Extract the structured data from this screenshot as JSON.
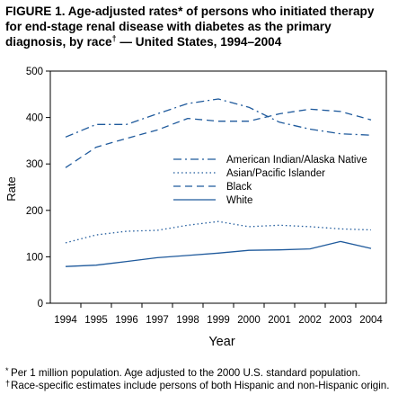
{
  "figure": {
    "title_main": "FIGURE 1. Age-adjusted rates* of persons who initiated therapy for end-stage renal disease with diabetes as the primary diagnosis, by race",
    "title_mark": "†",
    "title_tail": " — United States, 1994–2004"
  },
  "footnotes": [
    {
      "mark": "*",
      "text": "Per 1 million population. Age adjusted to the 2000 U.S. standard population."
    },
    {
      "mark": "†",
      "text": "Race-specific estimates include persons of both Hispanic and non-Hispanic origin."
    }
  ],
  "colors": {
    "line": "#1f5a9c",
    "axis": "#000000"
  },
  "chart_data": {
    "type": "line",
    "x": [
      "1994",
      "1995",
      "1996",
      "1997",
      "1998",
      "1999",
      "2000",
      "2001",
      "2002",
      "2003",
      "2004"
    ],
    "xlabel": "Year",
    "ylabel": "Rate",
    "ylim": [
      0,
      500
    ],
    "yticks": [
      "0",
      "100",
      "200",
      "300",
      "400",
      "500"
    ],
    "grid": false,
    "legend_position": "right",
    "series": [
      {
        "name": "American Indian/Alaska Native",
        "dash": "dash-dot",
        "values": [
          358,
          385,
          385,
          408,
          430,
          440,
          422,
          390,
          375,
          365,
          362
        ]
      },
      {
        "name": "Asian/Pacific Islander",
        "dash": "dotted",
        "values": [
          130,
          147,
          155,
          157,
          168,
          176,
          165,
          168,
          165,
          160,
          158
        ]
      },
      {
        "name": "Black",
        "dash": "dashed",
        "values": [
          292,
          336,
          355,
          373,
          398,
          392,
          392,
          408,
          418,
          413,
          395
        ]
      },
      {
        "name": "White",
        "dash": "solid",
        "values": [
          79,
          82,
          90,
          98,
          103,
          108,
          114,
          115,
          117,
          133,
          118
        ]
      }
    ]
  }
}
